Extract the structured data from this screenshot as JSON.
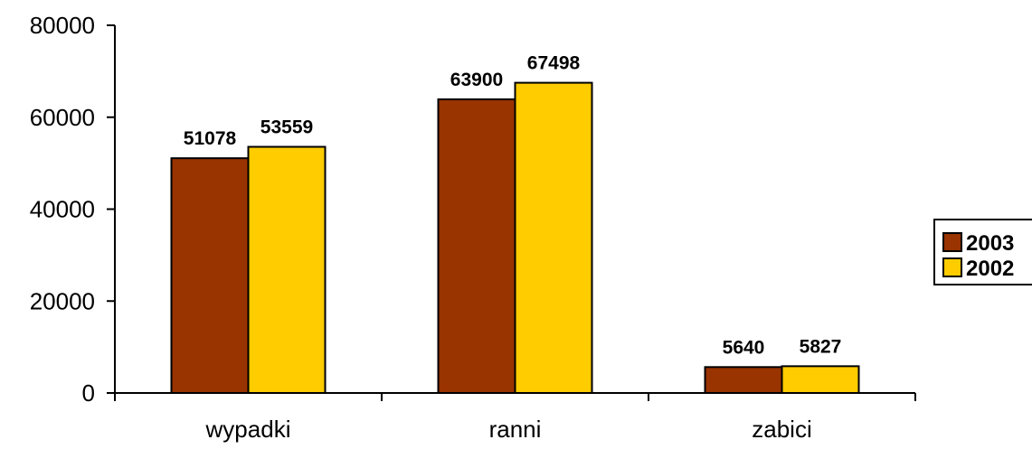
{
  "chart_data": {
    "type": "bar",
    "categories": [
      "wypadki",
      "ranni",
      "zabici"
    ],
    "series": [
      {
        "name": "2003",
        "values": [
          51078,
          63900,
          5640
        ],
        "color": "#993300"
      },
      {
        "name": "2002",
        "values": [
          53559,
          67498,
          5827
        ],
        "color": "#FFCC00"
      }
    ],
    "ylim": [
      0,
      80000
    ],
    "yticks": [
      "0",
      "20000",
      "40000",
      "60000",
      "80000"
    ],
    "ytick_values": [
      0,
      20000,
      40000,
      60000,
      80000
    ],
    "grid": false,
    "legend_position": "right",
    "data_labels": true,
    "title": "",
    "xlabel": "",
    "ylabel": ""
  }
}
